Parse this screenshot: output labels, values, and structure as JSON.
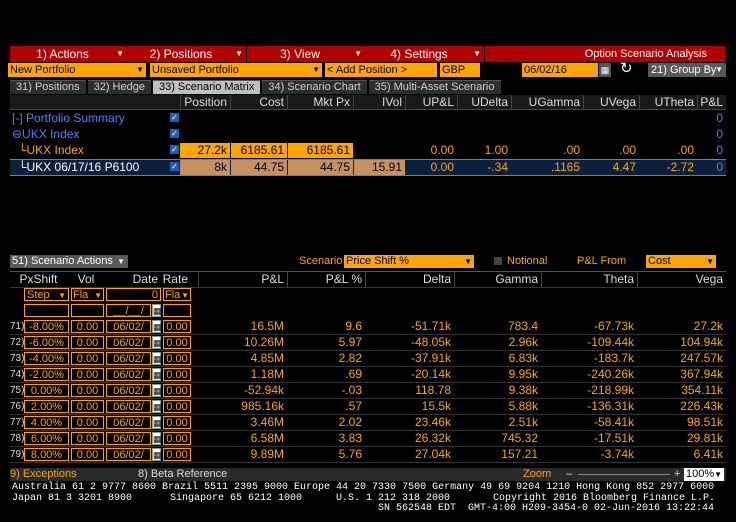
{
  "menu": {
    "actions": "1) Actions",
    "positions": "2) Positions",
    "view": "3) View",
    "settings": "4) Settings",
    "title": "Option Scenario Analysis"
  },
  "toolbar": {
    "portfolio": "New Portfolio",
    "unsaved": "Unsaved Portfolio",
    "add_position": "< Add Position >",
    "currency": "GBP",
    "date": "06/02/16",
    "group_by": "21) Group By"
  },
  "tabs": [
    "31) Positions",
    "32) Hedge",
    "33) Scenario Matrix",
    "34) Scenario Chart",
    "35) Multi-Asset Scenario"
  ],
  "columns": [
    "Position",
    "Cost",
    "Mkt Px",
    "IVol",
    "UP&L",
    "UDelta",
    "UGamma",
    "UVega",
    "UTheta",
    "P&L"
  ],
  "rows": {
    "summary": {
      "label": "[-] Portfolio Summary",
      "pnl": "0"
    },
    "index": {
      "label": "⊖UKX Index",
      "pnl": "0"
    },
    "ukx": {
      "label": "UKX Index",
      "position": "27.2k",
      "cost": "6185.61",
      "mktpx": "6185.61",
      "ivol": "",
      "upl": "0.00",
      "udelta": "1.00",
      "ugamma": ".00",
      "uvega": ".00",
      "utheta": ".00",
      "pnl": "0"
    },
    "option": {
      "label": "UKX 06/17/16 P6100",
      "position": "8k",
      "cost": "44.75",
      "mktpx": "44.75",
      "ivol": "15.91",
      "upl": "0.00",
      "udelta": "-.34",
      "ugamma": ".1165",
      "uvega": "4.47",
      "utheta": "-2.72",
      "pnl": "0"
    }
  },
  "scenario_bar": {
    "actions": "51) Scenario Actions",
    "scenario_label": "Scenario",
    "scenario_value": "Price Shift %",
    "notional": "Notional",
    "pnl_from_label": "P&L From",
    "pnl_from_value": "Cost"
  },
  "grid": {
    "headers": [
      "PxShift",
      "Vol",
      "Date",
      "Rate",
      "P&L",
      "P&L %",
      "Delta",
      "Gamma",
      "Theta",
      "Vega"
    ],
    "sub": {
      "step": "Step",
      "fla1": "Fla",
      "zero": "0",
      "fla2": "Fla",
      "date_ph": "__/__/"
    },
    "rows": [
      {
        "id": "71)",
        "px": "-8.00%",
        "vol": "0.00",
        "date": "06/02/",
        "rate": "0.00",
        "pnl": "16.5M",
        "pnlp": "9.6",
        "delta": "-51.71k",
        "gamma": "783.4",
        "theta": "-67.73k",
        "vega": "27.2k"
      },
      {
        "id": "72)",
        "px": "-6.00%",
        "vol": "0.00",
        "date": "06/02/",
        "rate": "0.00",
        "pnl": "10.26M",
        "pnlp": "5.97",
        "delta": "-48.05k",
        "gamma": "2.96k",
        "theta": "-109.44k",
        "vega": "104.94k"
      },
      {
        "id": "73)",
        "px": "-4.00%",
        "vol": "0.00",
        "date": "06/02/",
        "rate": "0.00",
        "pnl": "4.85M",
        "pnlp": "2.82",
        "delta": "-37.91k",
        "gamma": "6.83k",
        "theta": "-183.7k",
        "vega": "247.57k"
      },
      {
        "id": "74)",
        "px": "-2.00%",
        "vol": "0.00",
        "date": "06/02/",
        "rate": "0.00",
        "pnl": "1.18M",
        "pnlp": ".69",
        "delta": "-20.14k",
        "gamma": "9.95k",
        "theta": "-240.26k",
        "vega": "367.94k"
      },
      {
        "id": "75)",
        "px": "0.00%",
        "vol": "0.00",
        "date": "06/02/",
        "rate": "0.00",
        "pnl": "-52.94k",
        "pnlp": "-.03",
        "delta": "118.78",
        "gamma": "9.38k",
        "theta": "-218.99k",
        "vega": "354.11k"
      },
      {
        "id": "76)",
        "px": "2.00%",
        "vol": "0.00",
        "date": "06/02/",
        "rate": "0.00",
        "pnl": "985.16k",
        "pnlp": ".57",
        "delta": "15.5k",
        "gamma": "5.88k",
        "theta": "-136.31k",
        "vega": "226.43k"
      },
      {
        "id": "77)",
        "px": "4.00%",
        "vol": "0.00",
        "date": "06/02/",
        "rate": "0.00",
        "pnl": "3.46M",
        "pnlp": "2.02",
        "delta": "23.46k",
        "gamma": "2.51k",
        "theta": "-58.41k",
        "vega": "98.51k"
      },
      {
        "id": "78)",
        "px": "6.00%",
        "vol": "0.00",
        "date": "06/02/",
        "rate": "0.00",
        "pnl": "6.58M",
        "pnlp": "3.83",
        "delta": "26.32k",
        "gamma": "745.32",
        "theta": "-17.51k",
        "vega": "29.81k"
      },
      {
        "id": "79)",
        "px": "8.00%",
        "vol": "0.00",
        "date": "06/02/",
        "rate": "0.00",
        "pnl": "9.89M",
        "pnlp": "5.76",
        "delta": "27.04k",
        "gamma": "157.21",
        "theta": "-3.74k",
        "vega": "6.41k"
      }
    ]
  },
  "status": {
    "exceptions": "9) Exceptions",
    "beta": "8) Beta Reference",
    "zoom": "Zoom",
    "zoom_value": "100%"
  },
  "footer": {
    "line1": "Australia 61 2 9777 8600 Brazil 5511 2395 9000 Europe 44 20 7330 7500 Germany 49 69 9204 1210 Hong Kong 852 2977 6000",
    "line2a": "Japan 81 3 3201 8900",
    "line2b": "Singapore 65 6212 1000",
    "line2c": "U.S. 1 212 318 2000",
    "line2d": "Copyright 2016 Bloomberg Finance L.P.",
    "line3": "SN 562548 EDT  GMT-4:00 H209-3454-0 02-Jun-2016 13:22:44"
  },
  "colors": {
    "accent": "#ffa500",
    "menu": "#b00000",
    "link": "#3d86ff"
  }
}
